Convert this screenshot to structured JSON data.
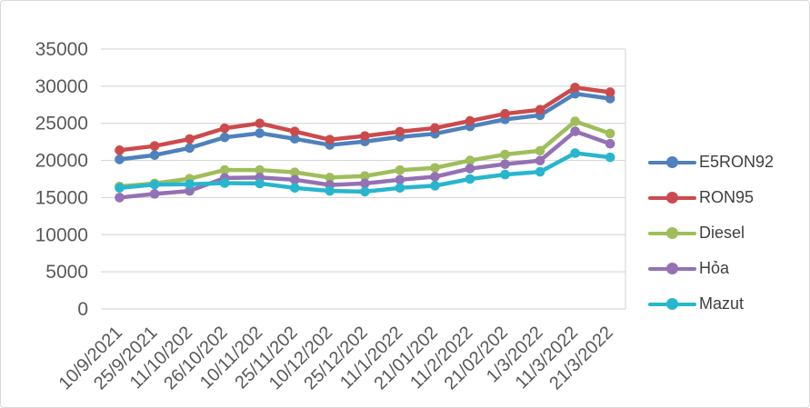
{
  "chart_data": {
    "type": "line",
    "title": "",
    "xlabel": "",
    "ylabel": "",
    "categories": [
      "10/9/2021",
      "25/9/2021",
      "11/10/202",
      "26/10/202",
      "10/11/202",
      "25/11/202",
      "10/12/202",
      "25/12/202",
      "11/1/2022",
      "21/01/202",
      "11/2/2022",
      "21/02/202",
      "1/3/2022",
      "11/3/2022",
      "21/3/2022"
    ],
    "series": [
      {
        "name": "E5RON92",
        "color": "#4E81BD",
        "values": [
          20143,
          20716,
          21683,
          23110,
          23669,
          22917,
          22082,
          22550,
          23159,
          23595,
          24571,
          25532,
          26077,
          28985,
          28330
        ]
      },
      {
        "name": "RON95",
        "color": "#CB4B4C",
        "values": [
          21376,
          21945,
          22879,
          24338,
          24996,
          23902,
          22801,
          23295,
          23876,
          24360,
          25322,
          26287,
          26834,
          29824,
          29192
        ]
      },
      {
        "name": "Diesel",
        "color": "#9FBE5B",
        "values": [
          16500,
          16900,
          17545,
          18716,
          18716,
          18400,
          17700,
          17900,
          18700,
          19000,
          20000,
          20800,
          21310,
          25268,
          23633
        ]
      },
      {
        "name": "Hỏa",
        "color": "#9471B4",
        "values": [
          15000,
          15500,
          15900,
          17637,
          17700,
          17400,
          16700,
          16900,
          17400,
          17800,
          18900,
          19500,
          19978,
          23918,
          22245
        ]
      },
      {
        "name": "Mazut",
        "color": "#27B6CE",
        "values": [
          16300,
          16750,
          16800,
          16950,
          16900,
          16300,
          15900,
          15800,
          16300,
          16600,
          17500,
          18100,
          18468,
          20987,
          20423
        ]
      }
    ],
    "ylim": [
      0,
      35000
    ],
    "yticks": [
      0,
      5000,
      10000,
      15000,
      20000,
      25000,
      30000,
      35000
    ],
    "grid": true,
    "legend_position": "right",
    "marker": "circle",
    "gridline_color": "#D9D9D9",
    "axis_text_color": "#595959",
    "legend_text_color": "#3F3F3F",
    "background_color": "#FFFFFF"
  }
}
